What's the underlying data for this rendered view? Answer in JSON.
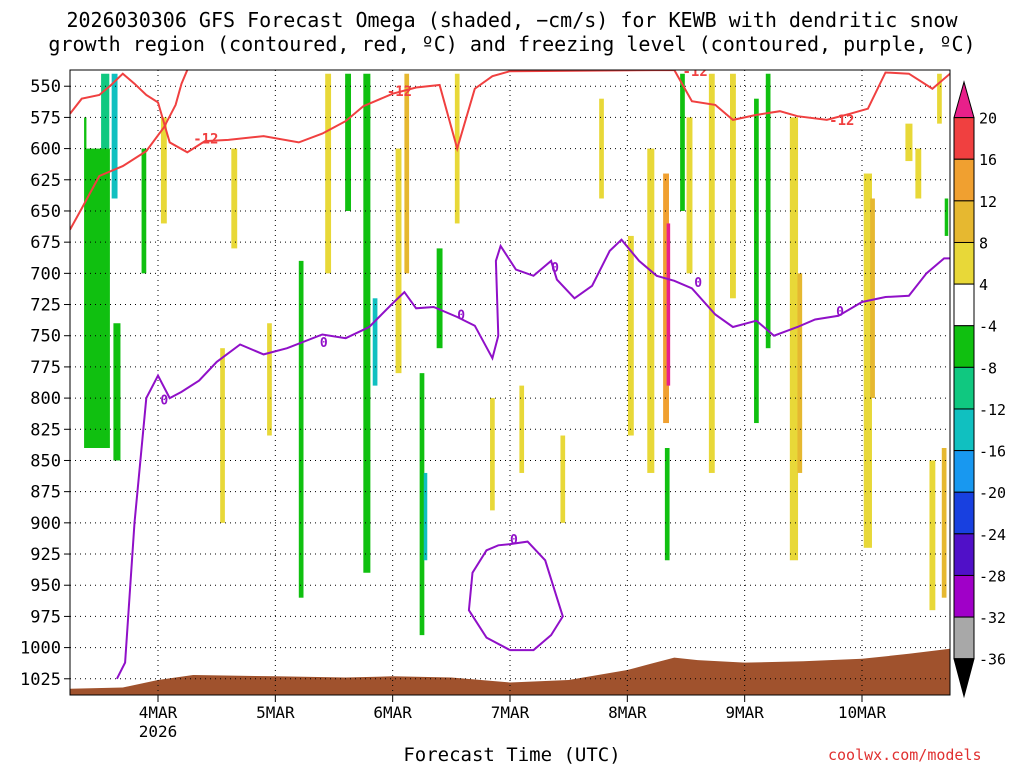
{
  "title_line1": "2026030306 GFS Forecast Omega (shaded, −cm/s) for KEWB with dendritic snow",
  "title_line2": "growth region (contoured, red, ºC) and freezing level (contoured, purple, ºC)",
  "credit": "coolwx.com/models",
  "chart_data": {
    "type": "heatmap",
    "title": "2026030306 GFS Forecast Omega (shaded, −cm/s) for KEWB with dendritic snow growth region (contoured, red, ºC) and freezing level (contoured, purple, ºC)",
    "xlabel": "Forecast Time (UTC)",
    "ylabel": "",
    "x_range_days": [
      3.25,
      10.75
    ],
    "y_range_hpa": [
      537,
      1038
    ],
    "y_ticks": [
      550,
      575,
      600,
      625,
      650,
      675,
      700,
      725,
      750,
      775,
      800,
      825,
      850,
      875,
      900,
      925,
      950,
      975,
      1000,
      1025
    ],
    "x_ticks": [
      {
        "day": 4,
        "label": "4MAR",
        "sublabel": "2026"
      },
      {
        "day": 5,
        "label": "5MAR",
        "sublabel": ""
      },
      {
        "day": 6,
        "label": "6MAR",
        "sublabel": ""
      },
      {
        "day": 7,
        "label": "7MAR",
        "sublabel": ""
      },
      {
        "day": 8,
        "label": "8MAR",
        "sublabel": ""
      },
      {
        "day": 9,
        "label": "9MAR",
        "sublabel": ""
      },
      {
        "day": 10,
        "label": "10MAR",
        "sublabel": ""
      }
    ],
    "grid": true,
    "colorbar": {
      "placement": "right",
      "labels": [
        "20",
        "16",
        "12",
        "8",
        "4",
        "-4",
        "-8",
        "-12",
        "-16",
        "-20",
        "-24",
        "-28",
        "-32",
        "-36"
      ],
      "bins": [
        {
          "lo": 20,
          "hi": null,
          "color": "#e8208a"
        },
        {
          "lo": 16,
          "hi": 20,
          "color": "#f04040"
        },
        {
          "lo": 12,
          "hi": 16,
          "color": "#f0a030"
        },
        {
          "lo": 8,
          "hi": 12,
          "color": "#e6b830"
        },
        {
          "lo": 4,
          "hi": 8,
          "color": "#e8d838"
        },
        {
          "lo": -4,
          "hi": 4,
          "color": "#ffffff"
        },
        {
          "lo": -8,
          "hi": -4,
          "color": "#10c010"
        },
        {
          "lo": -12,
          "hi": -8,
          "color": "#10c880"
        },
        {
          "lo": -16,
          "hi": -12,
          "color": "#10c0c0"
        },
        {
          "lo": -20,
          "hi": -16,
          "color": "#1898f0"
        },
        {
          "lo": -24,
          "hi": -20,
          "color": "#1840e0"
        },
        {
          "lo": -28,
          "hi": -24,
          "color": "#5010c8"
        },
        {
          "lo": -32,
          "hi": -28,
          "color": "#a000c8"
        },
        {
          "lo": -36,
          "hi": -32,
          "color": "#a8a8a8"
        },
        {
          "lo": null,
          "hi": -36,
          "color": "#000000"
        }
      ]
    },
    "omega_cells": [
      {
        "day": 3.55,
        "day_w": 0.07,
        "p_top": 540,
        "p_bot": 810,
        "value": -10
      },
      {
        "day": 3.63,
        "day_w": 0.05,
        "p_top": 540,
        "p_bot": 640,
        "value": -14
      },
      {
        "day": 3.48,
        "day_w": 0.22,
        "p_top": 600,
        "p_bot": 840,
        "value": -6
      },
      {
        "day": 3.65,
        "day_w": 0.06,
        "p_top": 740,
        "p_bot": 850,
        "value": -6
      },
      {
        "day": 3.38,
        "day_w": 0.02,
        "p_top": 575,
        "p_bot": 600,
        "value": -6
      },
      {
        "day": 3.88,
        "day_w": 0.04,
        "p_top": 600,
        "p_bot": 700,
        "value": -6
      },
      {
        "day": 4.05,
        "day_w": 0.05,
        "p_top": 575,
        "p_bot": 660,
        "value": 6
      },
      {
        "day": 4.55,
        "day_w": 0.04,
        "p_top": 760,
        "p_bot": 900,
        "value": 6
      },
      {
        "day": 4.65,
        "day_w": 0.05,
        "p_top": 600,
        "p_bot": 680,
        "value": 6
      },
      {
        "day": 4.95,
        "day_w": 0.04,
        "p_top": 740,
        "p_bot": 830,
        "value": 6
      },
      {
        "day": 5.22,
        "day_w": 0.04,
        "p_top": 690,
        "p_bot": 960,
        "value": -6
      },
      {
        "day": 5.45,
        "day_w": 0.05,
        "p_top": 540,
        "p_bot": 700,
        "value": 6
      },
      {
        "day": 5.62,
        "day_w": 0.05,
        "p_top": 540,
        "p_bot": 650,
        "value": -6
      },
      {
        "day": 5.78,
        "day_w": 0.06,
        "p_top": 540,
        "p_bot": 940,
        "value": -6
      },
      {
        "day": 5.85,
        "day_w": 0.04,
        "p_top": 720,
        "p_bot": 790,
        "value": -14
      },
      {
        "day": 6.05,
        "day_w": 0.05,
        "p_top": 600,
        "p_bot": 780,
        "value": 6
      },
      {
        "day": 6.12,
        "day_w": 0.04,
        "p_top": 540,
        "p_bot": 700,
        "value": 10
      },
      {
        "day": 6.25,
        "day_w": 0.04,
        "p_top": 780,
        "p_bot": 990,
        "value": -6
      },
      {
        "day": 6.28,
        "day_w": 0.03,
        "p_top": 860,
        "p_bot": 930,
        "value": -14
      },
      {
        "day": 6.4,
        "day_w": 0.05,
        "p_top": 680,
        "p_bot": 760,
        "value": -6
      },
      {
        "day": 6.55,
        "day_w": 0.04,
        "p_top": 540,
        "p_bot": 660,
        "value": 6
      },
      {
        "day": 6.85,
        "day_w": 0.04,
        "p_top": 800,
        "p_bot": 890,
        "value": 6
      },
      {
        "day": 7.1,
        "day_w": 0.04,
        "p_top": 790,
        "p_bot": 860,
        "value": 6
      },
      {
        "day": 7.45,
        "day_w": 0.04,
        "p_top": 830,
        "p_bot": 900,
        "value": 6
      },
      {
        "day": 7.78,
        "day_w": 0.04,
        "p_top": 560,
        "p_bot": 640,
        "value": 6
      },
      {
        "day": 8.03,
        "day_w": 0.05,
        "p_top": 670,
        "p_bot": 830,
        "value": 6
      },
      {
        "day": 8.2,
        "day_w": 0.06,
        "p_top": 600,
        "p_bot": 860,
        "value": 6
      },
      {
        "day": 8.33,
        "day_w": 0.05,
        "p_top": 620,
        "p_bot": 820,
        "value": 12
      },
      {
        "day": 8.35,
        "day_w": 0.03,
        "p_top": 660,
        "p_bot": 790,
        "value": 22
      },
      {
        "day": 8.34,
        "day_w": 0.04,
        "p_top": 840,
        "p_bot": 930,
        "value": -6
      },
      {
        "day": 8.47,
        "day_w": 0.04,
        "p_top": 540,
        "p_bot": 650,
        "value": -6
      },
      {
        "day": 8.53,
        "day_w": 0.05,
        "p_top": 575,
        "p_bot": 700,
        "value": 6
      },
      {
        "day": 8.72,
        "day_w": 0.05,
        "p_top": 540,
        "p_bot": 860,
        "value": 6
      },
      {
        "day": 8.9,
        "day_w": 0.05,
        "p_top": 540,
        "p_bot": 720,
        "value": 6
      },
      {
        "day": 9.1,
        "day_w": 0.04,
        "p_top": 560,
        "p_bot": 820,
        "value": -6
      },
      {
        "day": 9.2,
        "day_w": 0.04,
        "p_top": 540,
        "p_bot": 760,
        "value": -6
      },
      {
        "day": 9.42,
        "day_w": 0.07,
        "p_top": 575,
        "p_bot": 930,
        "value": 6
      },
      {
        "day": 9.47,
        "day_w": 0.04,
        "p_top": 700,
        "p_bot": 860,
        "value": 10
      },
      {
        "day": 10.05,
        "day_w": 0.07,
        "p_top": 620,
        "p_bot": 920,
        "value": 6
      },
      {
        "day": 10.09,
        "day_w": 0.04,
        "p_top": 640,
        "p_bot": 800,
        "value": 10
      },
      {
        "day": 10.4,
        "day_w": 0.06,
        "p_top": 580,
        "p_bot": 610,
        "value": 6
      },
      {
        "day": 10.48,
        "day_w": 0.05,
        "p_top": 600,
        "p_bot": 640,
        "value": 6
      },
      {
        "day": 10.6,
        "day_w": 0.05,
        "p_top": 850,
        "p_bot": 970,
        "value": 6
      },
      {
        "day": 10.66,
        "day_w": 0.04,
        "p_top": 540,
        "p_bot": 580,
        "value": 6
      },
      {
        "day": 10.7,
        "day_w": 0.04,
        "p_top": 840,
        "p_bot": 960,
        "value": 10
      },
      {
        "day": 10.72,
        "day_w": 0.03,
        "p_top": 640,
        "p_bot": 670,
        "value": -6
      }
    ],
    "dgz_contour_label": "-12",
    "dgz_contour": [
      [
        3.25,
        572
      ],
      [
        3.35,
        560
      ],
      [
        3.5,
        557
      ],
      [
        3.6,
        549
      ],
      [
        3.7,
        540
      ],
      [
        3.8,
        548
      ],
      [
        3.9,
        557
      ],
      [
        4.0,
        563
      ],
      [
        4.1,
        595
      ],
      [
        4.25,
        603
      ],
      [
        4.4,
        594
      ],
      [
        4.6,
        593
      ],
      [
        4.9,
        590
      ],
      [
        5.2,
        595
      ],
      [
        5.4,
        588
      ],
      [
        5.6,
        578
      ],
      [
        5.75,
        566
      ],
      [
        6.0,
        556
      ],
      [
        6.2,
        551
      ],
      [
        6.4,
        549
      ],
      [
        6.55,
        600
      ],
      [
        6.7,
        552
      ],
      [
        6.85,
        542
      ],
      [
        7.0,
        538
      ],
      [
        8.4,
        537
      ],
      [
        8.55,
        562
      ],
      [
        8.75,
        565
      ],
      [
        8.9,
        577
      ],
      [
        9.1,
        573
      ],
      [
        9.3,
        570
      ],
      [
        9.45,
        574
      ],
      [
        9.7,
        577
      ],
      [
        9.9,
        572
      ],
      [
        10.05,
        568
      ],
      [
        10.2,
        539
      ],
      [
        10.4,
        540
      ],
      [
        10.6,
        552
      ],
      [
        10.75,
        540
      ]
    ],
    "dgz_contour_lower": [
      [
        3.25,
        665
      ],
      [
        3.35,
        648
      ],
      [
        3.5,
        622
      ],
      [
        3.7,
        614
      ],
      [
        3.9,
        602
      ],
      [
        4.05,
        583
      ],
      [
        4.15,
        565
      ],
      [
        4.2,
        548
      ],
      [
        4.25,
        537
      ]
    ],
    "freezing_contour_label": "0",
    "freezing_contour": [
      [
        3.65,
        1025
      ],
      [
        3.72,
        1012
      ],
      [
        3.8,
        900
      ],
      [
        3.9,
        800
      ],
      [
        4.0,
        782
      ],
      [
        4.1,
        800
      ],
      [
        4.2,
        795
      ],
      [
        4.35,
        786
      ],
      [
        4.5,
        771
      ],
      [
        4.7,
        757
      ],
      [
        4.9,
        765
      ],
      [
        5.1,
        760
      ],
      [
        5.4,
        749
      ],
      [
        5.6,
        752
      ],
      [
        5.8,
        743
      ],
      [
        6.0,
        724
      ],
      [
        6.1,
        715
      ],
      [
        6.2,
        728
      ],
      [
        6.35,
        727
      ],
      [
        6.55,
        735
      ],
      [
        6.7,
        742
      ],
      [
        6.85,
        768
      ],
      [
        6.9,
        750
      ],
      [
        6.88,
        690
      ],
      [
        6.92,
        678
      ],
      [
        7.05,
        697
      ],
      [
        7.2,
        702
      ],
      [
        7.35,
        690
      ],
      [
        7.4,
        705
      ],
      [
        7.55,
        720
      ],
      [
        7.7,
        710
      ],
      [
        7.85,
        682
      ],
      [
        7.95,
        673
      ],
      [
        8.1,
        690
      ],
      [
        8.25,
        702
      ],
      [
        8.4,
        706
      ],
      [
        8.55,
        712
      ],
      [
        8.75,
        733
      ],
      [
        8.9,
        743
      ],
      [
        9.1,
        738
      ],
      [
        9.25,
        750
      ],
      [
        9.45,
        743
      ],
      [
        9.6,
        737
      ],
      [
        9.8,
        734
      ],
      [
        10.0,
        723
      ],
      [
        10.2,
        719
      ],
      [
        10.4,
        718
      ],
      [
        10.55,
        700
      ],
      [
        10.7,
        688
      ],
      [
        10.75,
        688
      ]
    ],
    "freezing_loop": [
      [
        7.0,
        917
      ],
      [
        7.15,
        915
      ],
      [
        7.3,
        930
      ],
      [
        7.4,
        960
      ],
      [
        7.45,
        975
      ],
      [
        7.35,
        990
      ],
      [
        7.2,
        1002
      ],
      [
        7.0,
        1002
      ],
      [
        6.8,
        992
      ],
      [
        6.65,
        970
      ],
      [
        6.68,
        940
      ],
      [
        6.8,
        922
      ],
      [
        6.9,
        918
      ],
      [
        7.0,
        917
      ]
    ],
    "terrain_top_hpa": [
      [
        3.25,
        1033
      ],
      [
        3.7,
        1032
      ],
      [
        4.0,
        1026
      ],
      [
        4.3,
        1022
      ],
      [
        5.0,
        1023
      ],
      [
        5.6,
        1024
      ],
      [
        6.0,
        1023
      ],
      [
        6.5,
        1024
      ],
      [
        7.0,
        1028
      ],
      [
        7.5,
        1026
      ],
      [
        8.0,
        1018
      ],
      [
        8.2,
        1013
      ],
      [
        8.4,
        1008
      ],
      [
        8.6,
        1010
      ],
      [
        9.0,
        1012
      ],
      [
        9.5,
        1011
      ],
      [
        10.0,
        1009
      ],
      [
        10.4,
        1005
      ],
      [
        10.75,
        1001
      ]
    ]
  }
}
